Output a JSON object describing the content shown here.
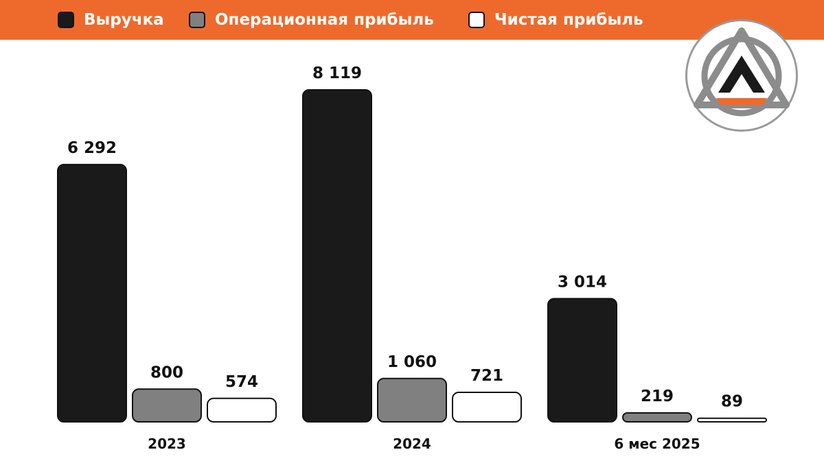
{
  "legend": [
    {
      "label": "Выручка",
      "color": "#1a1a1a"
    },
    {
      "label": "Операционная прибыль",
      "color": "#808080"
    },
    {
      "label": "Чистая прибыль",
      "color": "#ffffff"
    }
  ],
  "colors": {
    "accent": "#ee6a2c",
    "logo_gray": "#8c8c8c"
  },
  "chart_data": {
    "type": "bar",
    "categories": [
      "2023",
      "2024",
      "6 мес 2025"
    ],
    "series": [
      {
        "name": "Выручка",
        "values": [
          6292,
          8119,
          3014
        ],
        "labels": [
          "6 292",
          "8 119",
          "3 014"
        ],
        "color": "#1a1a1a"
      },
      {
        "name": "Операционная прибыль",
        "values": [
          800,
          1060,
          219
        ],
        "labels": [
          "800",
          "1 060",
          "219"
        ],
        "color": "#808080"
      },
      {
        "name": "Чистая прибыль",
        "values": [
          574,
          721,
          89
        ],
        "labels": [
          "574",
          "721",
          "89"
        ],
        "color": "#ffffff"
      }
    ],
    "ylim": [
      0,
      8119
    ],
    "grid": false,
    "legend_position": "top"
  }
}
